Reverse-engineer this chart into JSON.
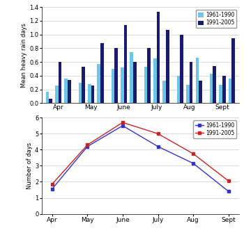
{
  "bar_period1": [
    0.17,
    0.26,
    0.36,
    0.3,
    0.28,
    0.57,
    0.5,
    0.52,
    0.74,
    0.53,
    0.65,
    0.33,
    0.4,
    0.27,
    0.66,
    0.43,
    0.27,
    0.36
  ],
  "bar_period2": [
    0.07,
    0.6,
    0.34,
    0.53,
    0.26,
    0.88,
    0.8,
    1.14,
    0.6,
    0.8,
    1.33,
    1.07,
    1.0,
    0.6,
    0.33,
    0.54,
    0.4,
    0.95
  ],
  "color_1961": "#6EC6E6",
  "color_1991": "#1A1A6E",
  "bar_ylabel": "Mean heavy rain days",
  "bar_ylim": [
    0,
    1.4
  ],
  "bar_yticks": [
    0.0,
    0.2,
    0.4,
    0.6,
    0.8,
    1.0,
    1.2,
    1.4
  ],
  "months_bar": [
    "Apr",
    "May",
    "June",
    "July",
    "Aug",
    "Sept"
  ],
  "line_months": [
    "Apr",
    "May",
    "June",
    "July",
    "Aug",
    "Sept"
  ],
  "line_1961": [
    1.55,
    4.2,
    5.5,
    4.2,
    3.15,
    1.4
  ],
  "line_1991": [
    1.85,
    4.3,
    5.7,
    5.0,
    3.75,
    2.05
  ],
  "line_ylabel": "Number of days",
  "line_ylim": [
    0,
    6
  ],
  "line_yticks": [
    0,
    1,
    2,
    3,
    4,
    5,
    6
  ],
  "line_color_1961": "#3333CC",
  "line_color_1991": "#CC2222",
  "legend_1961_label": "1961-1990",
  "legend_1991_label": "1991-2005"
}
